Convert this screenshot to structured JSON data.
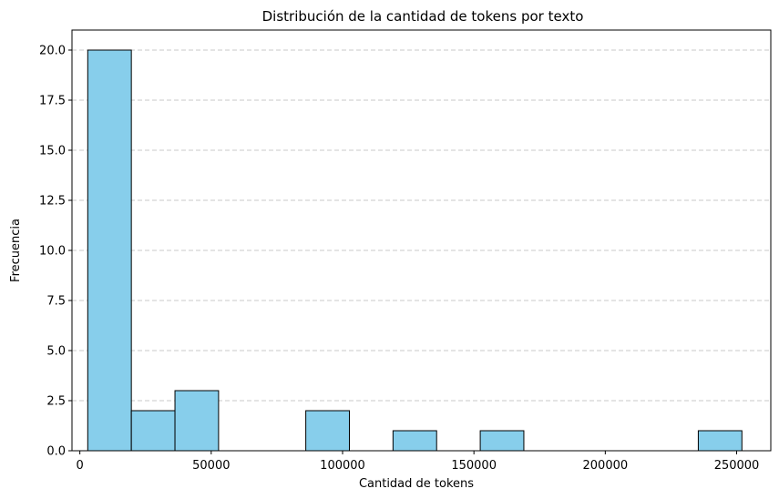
{
  "chart_data": {
    "type": "bar",
    "title": "Distribución de la cantidad de tokens por texto",
    "xlabel": "Cantidad de tokens",
    "ylabel": "Frecuencia",
    "xlim": [
      -3000,
      263000
    ],
    "ylim": [
      0,
      21
    ],
    "xticks": [
      0,
      50000,
      100000,
      150000,
      200000,
      250000
    ],
    "xtick_labels": [
      "0",
      "50000",
      "100000",
      "150000",
      "200000",
      "250000"
    ],
    "yticks": [
      0,
      2.5,
      5,
      7.5,
      10,
      12.5,
      15,
      17.5,
      20
    ],
    "ytick_labels": [
      "0.0",
      "2.5",
      "5.0",
      "7.5",
      "10.0",
      "12.5",
      "15.0",
      "17.5",
      "20.0"
    ],
    "bins": [
      {
        "start": 3000,
        "end": 19600,
        "count": 20
      },
      {
        "start": 19600,
        "end": 36200,
        "count": 2
      },
      {
        "start": 36200,
        "end": 52800,
        "count": 3
      },
      {
        "start": 52800,
        "end": 69400,
        "count": 0
      },
      {
        "start": 69400,
        "end": 86000,
        "count": 0
      },
      {
        "start": 86000,
        "end": 102600,
        "count": 2
      },
      {
        "start": 102600,
        "end": 119200,
        "count": 0
      },
      {
        "start": 119200,
        "end": 135800,
        "count": 1
      },
      {
        "start": 135800,
        "end": 152400,
        "count": 0
      },
      {
        "start": 152400,
        "end": 169000,
        "count": 1
      },
      {
        "start": 169000,
        "end": 185600,
        "count": 0
      },
      {
        "start": 185600,
        "end": 202200,
        "count": 0
      },
      {
        "start": 202200,
        "end": 218800,
        "count": 0
      },
      {
        "start": 218800,
        "end": 235400,
        "count": 0
      },
      {
        "start": 235400,
        "end": 252000,
        "count": 1
      }
    ],
    "grid": {
      "axis": "y",
      "style": "dashed"
    },
    "colors": {
      "bar_fill": "#87CEEB",
      "bar_edge": "#000000",
      "grid": "#c8c8c8"
    }
  }
}
